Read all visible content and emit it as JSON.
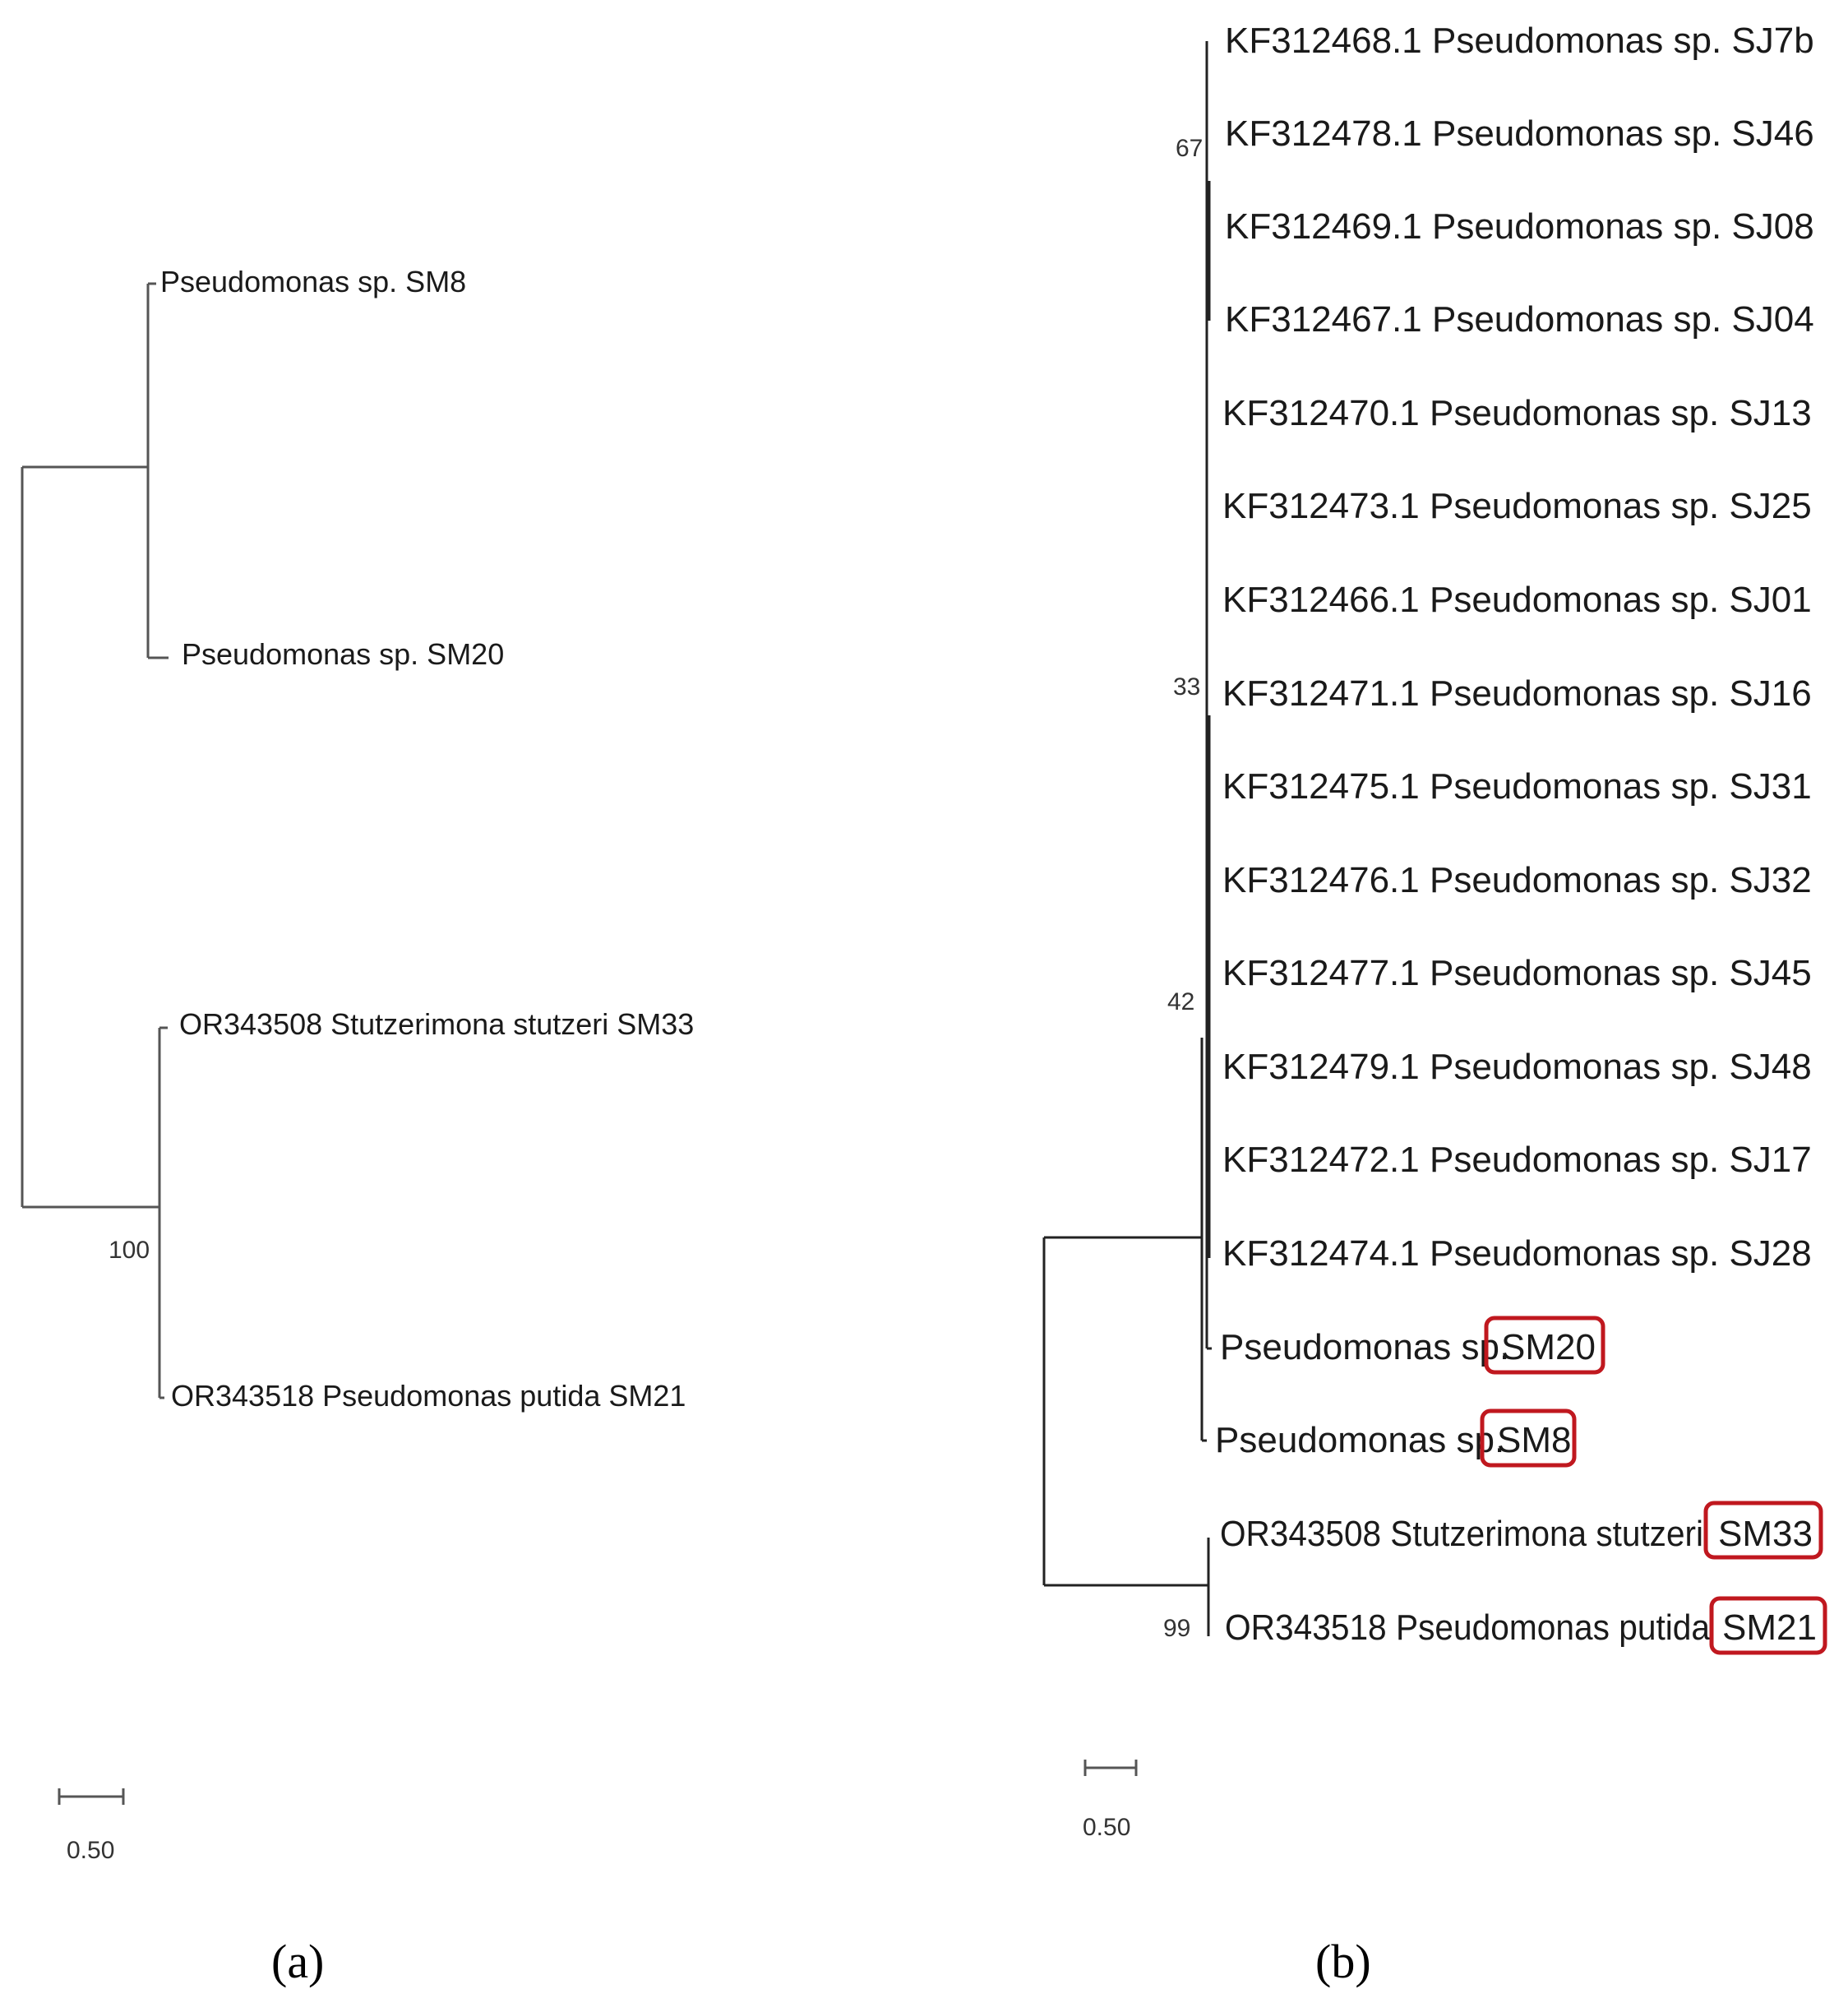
{
  "panel_a": {
    "label": "(a)",
    "taxa": {
      "sm8": "Pseudomonas sp. SM8",
      "sm20": "Pseudomonas sp. SM20",
      "sm33": "OR343508 Stutzerimona stutzeri SM33",
      "sm21": "OR343518 Pseudomonas putida SM21"
    },
    "bootstrap": {
      "node_sm33_sm21": "100"
    },
    "scale_bar": "0.50"
  },
  "panel_b": {
    "label": "(b)",
    "taxa": [
      "KF312468.1 Pseudomonas sp. SJ7b",
      "KF312478.1 Pseudomonas sp. SJ46",
      "KF312469.1 Pseudomonas sp. SJ08",
      "KF312467.1 Pseudomonas sp. SJ04",
      "KF312470.1 Pseudomonas sp. SJ13",
      "KF312473.1 Pseudomonas sp. SJ25",
      "KF312466.1 Pseudomonas sp. SJ01",
      "KF312471.1 Pseudomonas sp. SJ16",
      "KF312475.1 Pseudomonas sp. SJ31",
      "KF312476.1 Pseudomonas sp. SJ32",
      "KF312477.1 Pseudomonas sp. SJ45",
      "KF312479.1 Pseudomonas sp. SJ48",
      "KF312472.1 Pseudomonas sp. SJ17",
      "KF312474.1 Pseudomonas sp. SJ28"
    ],
    "highlighted_taxa": [
      {
        "prefix": "Pseudomonas sp.",
        "code": "SM20"
      },
      {
        "prefix": "Pseudomonas sp.",
        "code": "SM8"
      },
      {
        "prefix": "OR343508 Stutzerimona stutzeri",
        "code": "SM33"
      },
      {
        "prefix": "OR343518 Pseudomonas putida",
        "code": "SM21"
      }
    ],
    "bootstrap": [
      "67",
      "33",
      "42",
      "99"
    ],
    "scale_bar": "0.50",
    "highlight_color": "#c0181f"
  }
}
